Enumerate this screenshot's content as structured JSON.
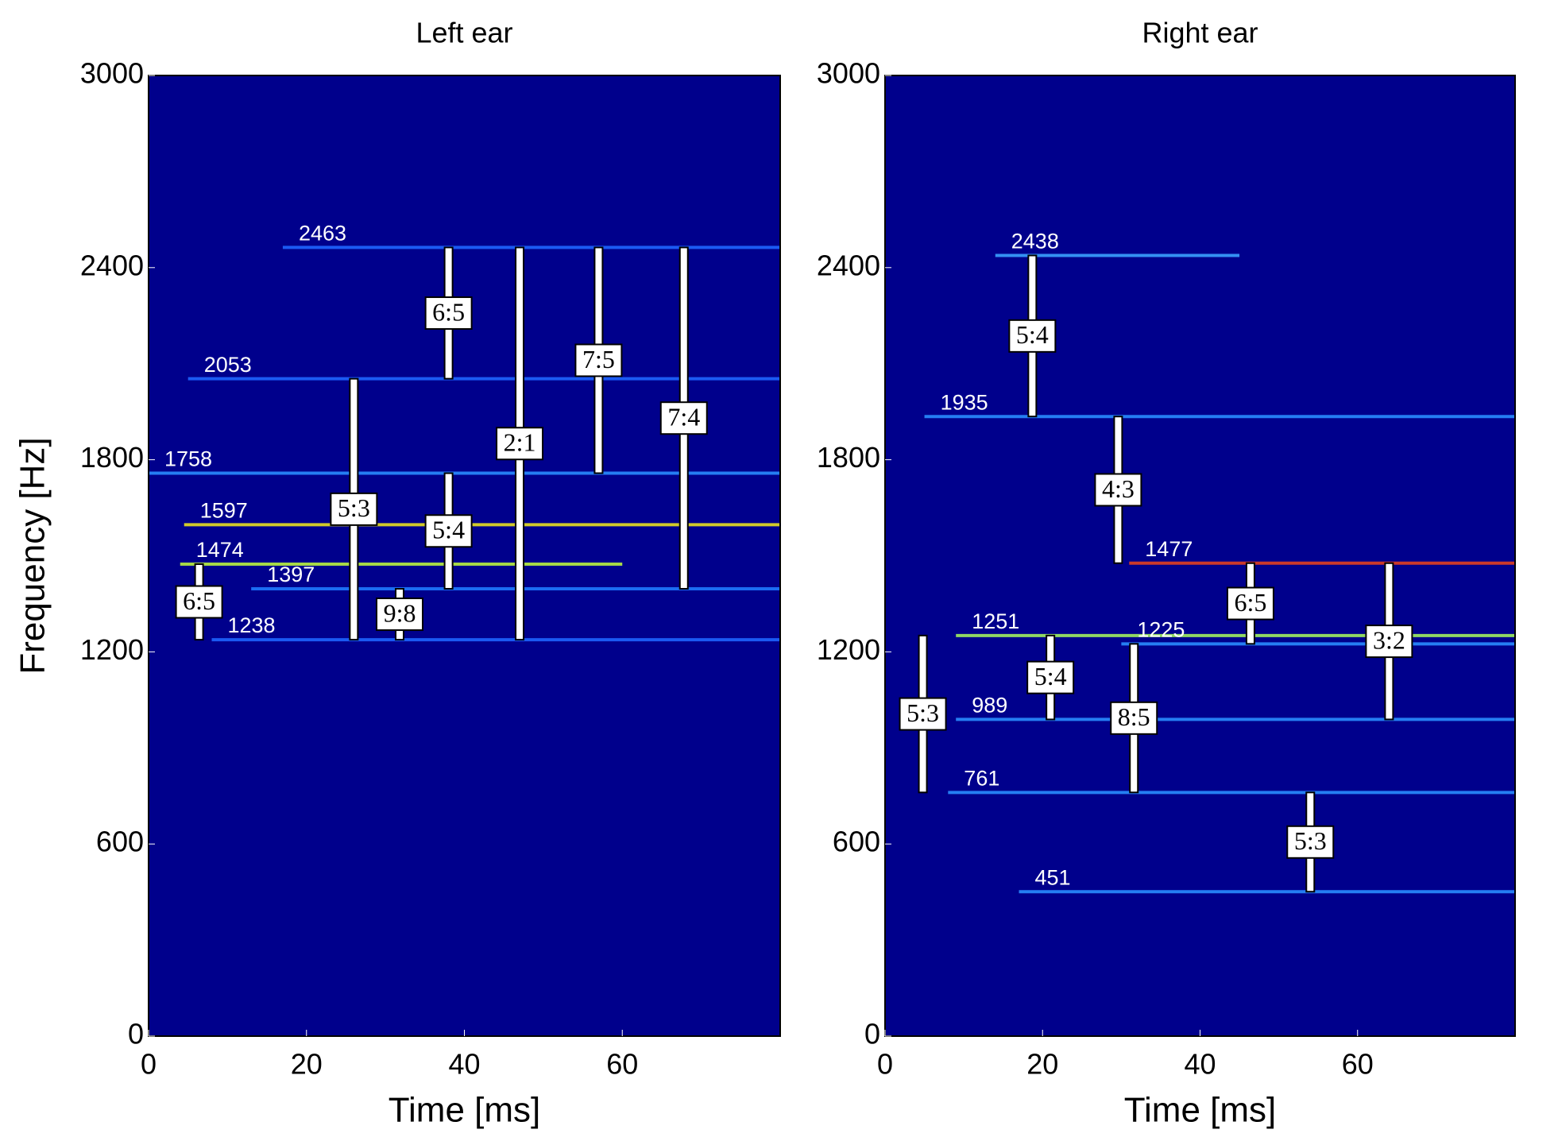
{
  "chart_data": [
    {
      "type": "spectrogram",
      "title": "Left ear",
      "xlabel": "Time [ms]",
      "ylabel": "Frequency [Hz]",
      "xlim": [
        0,
        80
      ],
      "ylim": [
        0,
        3000
      ],
      "xticks": [
        0,
        20,
        40,
        60
      ],
      "yticks": [
        0,
        600,
        1200,
        1800,
        2400,
        3000
      ],
      "background": "#00008c",
      "tracks": [
        {
          "frequency": 2463,
          "start": 17,
          "end": 80,
          "color": "#1e64ff"
        },
        {
          "frequency": 2053,
          "start": 5,
          "end": 80,
          "color": "#1e64ff"
        },
        {
          "frequency": 1758,
          "start": 0,
          "end": 80,
          "color": "#2a8cff"
        },
        {
          "frequency": 1597,
          "start": 4.5,
          "end": 80,
          "color": "#e8e020"
        },
        {
          "frequency": 1474,
          "start": 4,
          "end": 60,
          "color": "#b8f040"
        },
        {
          "frequency": 1397,
          "start": 13,
          "end": 80,
          "color": "#1e78ff"
        },
        {
          "frequency": 1238,
          "start": 8,
          "end": 80,
          "color": "#1e64ff"
        }
      ],
      "ratios": [
        {
          "label": "6:5",
          "time": 6.4,
          "low": 1238,
          "high": 1474
        },
        {
          "label": "5:3",
          "time": 26,
          "low": 1238,
          "high": 2053
        },
        {
          "label": "9:8",
          "time": 31.8,
          "low": 1238,
          "high": 1397
        },
        {
          "label": "6:5",
          "time": 38,
          "low": 2053,
          "high": 2463
        },
        {
          "label": "5:4",
          "time": 38,
          "low": 1397,
          "high": 1758
        },
        {
          "label": "2:1",
          "time": 47,
          "low": 1238,
          "high": 2463
        },
        {
          "label": "7:5",
          "time": 57,
          "low": 1758,
          "high": 2463
        },
        {
          "label": "7:4",
          "time": 67.8,
          "low": 1397,
          "high": 2463
        }
      ]
    },
    {
      "type": "spectrogram",
      "title": "Right ear",
      "xlabel": "Time [ms]",
      "xlim": [
        0,
        80
      ],
      "ylim": [
        0,
        3000
      ],
      "xticks": [
        0,
        20,
        40,
        60
      ],
      "yticks": [
        0,
        600,
        1200,
        1800,
        2400,
        3000
      ],
      "background": "#00008c",
      "tracks": [
        {
          "frequency": 2438,
          "start": 14,
          "end": 45,
          "color": "#3aa0ff"
        },
        {
          "frequency": 1935,
          "start": 5,
          "end": 80,
          "color": "#2a8cff"
        },
        {
          "frequency": 1477,
          "start": 31,
          "end": 80,
          "color": "#e04020"
        },
        {
          "frequency": 1251,
          "start": 9,
          "end": 80,
          "color": "#a0f060"
        },
        {
          "frequency": 1225,
          "start": 30,
          "end": 80,
          "color": "#2a8cff"
        },
        {
          "frequency": 989,
          "start": 9,
          "end": 80,
          "color": "#2a8cff"
        },
        {
          "frequency": 761,
          "start": 8,
          "end": 80,
          "color": "#2a8cff"
        },
        {
          "frequency": 451,
          "start": 17,
          "end": 80,
          "color": "#2a8cff"
        }
      ],
      "ratios": [
        {
          "label": "5:3",
          "time": 4.8,
          "low": 761,
          "high": 1251
        },
        {
          "label": "5:4",
          "time": 18.7,
          "low": 1935,
          "high": 2438
        },
        {
          "label": "5:4",
          "time": 21,
          "low": 989,
          "high": 1251
        },
        {
          "label": "4:3",
          "time": 29.6,
          "low": 1477,
          "high": 1935
        },
        {
          "label": "8:5",
          "time": 31.6,
          "low": 761,
          "high": 1225
        },
        {
          "label": "6:5",
          "time": 46.4,
          "low": 1225,
          "high": 1477
        },
        {
          "label": "3:2",
          "time": 64,
          "low": 989,
          "high": 1477
        },
        {
          "label": "5:3",
          "time": 54,
          "low": 451,
          "high": 761
        }
      ]
    }
  ]
}
